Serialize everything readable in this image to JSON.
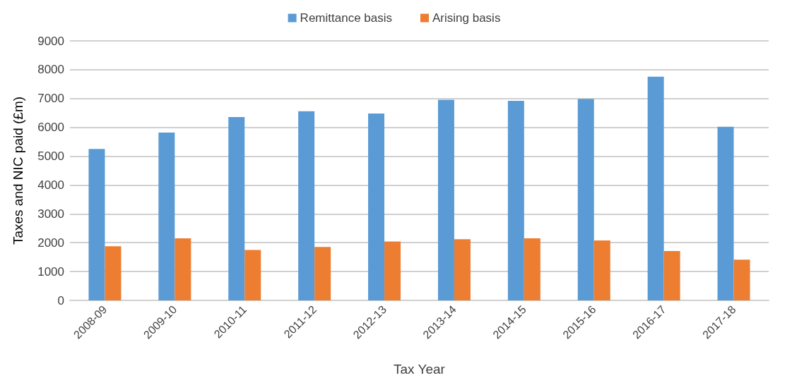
{
  "chart_data": {
    "type": "bar",
    "xlabel": "Tax Year",
    "ylabel": "Taxes and NIC paid (£m)",
    "categories": [
      "2008-09",
      "2009-10",
      "2010-11",
      "2011-12",
      "2012-13",
      "2013-14",
      "2014-15",
      "2015-16",
      "2016-17",
      "2017-18"
    ],
    "series": [
      {
        "name": "Remittance basis",
        "color": "#5b9bd5",
        "values": [
          5250,
          5820,
          6360,
          6560,
          6480,
          6960,
          6920,
          6990,
          7760,
          6020
        ]
      },
      {
        "name": "Arising basis",
        "color": "#ed7d31",
        "values": [
          1880,
          2150,
          1750,
          1850,
          2040,
          2120,
          2150,
          2080,
          1710,
          1410
        ]
      }
    ],
    "ylim": [
      0,
      9000
    ],
    "yticks": [
      0,
      1000,
      2000,
      3000,
      4000,
      5000,
      6000,
      7000,
      8000,
      9000
    ],
    "grid": "y",
    "legend": "top"
  }
}
